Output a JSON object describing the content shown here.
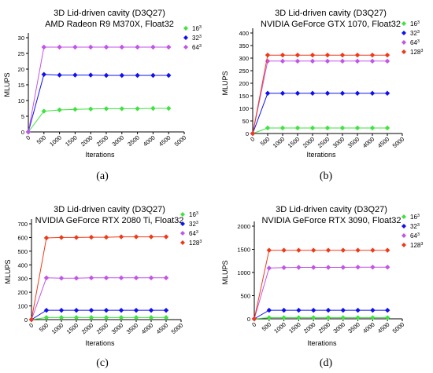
{
  "colors": {
    "s16": "#3fe23f",
    "s32": "#1010ee",
    "s64": "#c155e6",
    "s128": "#ee3a1a"
  },
  "chart_data": [
    {
      "type": "line",
      "panel": "(a)",
      "title": [
        "3D Lid-driven cavity (D3Q27)",
        "AMD Radeon R9 M370X, Float32"
      ],
      "xlabel": "Iterations",
      "ylabel": "MLUPS",
      "xlim": [
        0,
        5000
      ],
      "ylim": [
        0,
        30
      ],
      "xticks": [
        0,
        500,
        1000,
        1500,
        2000,
        2500,
        3000,
        3500,
        4000,
        4500,
        5000
      ],
      "yticks": [
        0,
        5,
        10,
        15,
        20,
        25,
        30
      ],
      "legend_position": "top-right",
      "x": [
        0,
        500,
        1000,
        1500,
        2000,
        2500,
        3000,
        3500,
        4000,
        4500
      ],
      "series": [
        {
          "name": "16",
          "exp": "3",
          "color": "#3fe23f",
          "values": [
            0,
            6.6,
            7.0,
            7.2,
            7.3,
            7.4,
            7.4,
            7.4,
            7.5,
            7.5
          ]
        },
        {
          "name": "32",
          "exp": "3",
          "color": "#1010ee",
          "values": [
            0,
            18.3,
            18.1,
            18.1,
            18.1,
            18.0,
            18.0,
            18.0,
            18.0,
            18.0
          ]
        },
        {
          "name": "64",
          "exp": "3",
          "color": "#c155e6",
          "values": [
            0,
            27.0,
            27.0,
            27.0,
            27.0,
            27.0,
            27.0,
            27.0,
            27.0,
            27.0
          ]
        }
      ]
    },
    {
      "type": "line",
      "panel": "(b)",
      "title": [
        "3D Lid-driven cavity (D3Q27)",
        "NVIDIA GeForce GTX 1070, Float32"
      ],
      "xlabel": "Iterations",
      "ylabel": "MLUPS",
      "xlim": [
        0,
        5000
      ],
      "ylim": [
        0,
        400
      ],
      "xticks": [
        0,
        500,
        1000,
        1500,
        2000,
        2500,
        3000,
        3500,
        4000,
        4500,
        5000
      ],
      "yticks": [
        0,
        50,
        100,
        150,
        200,
        250,
        300,
        350,
        400
      ],
      "legend_position": "top-right",
      "x": [
        0,
        500,
        1000,
        1500,
        2000,
        2500,
        3000,
        3500,
        4000,
        4500
      ],
      "series": [
        {
          "name": "16",
          "exp": "3",
          "color": "#3fe23f",
          "values": [
            0,
            22,
            22,
            22,
            22,
            22,
            22,
            22,
            22,
            22
          ]
        },
        {
          "name": "32",
          "exp": "3",
          "color": "#1010ee",
          "values": [
            0,
            160,
            160,
            160,
            160,
            160,
            160,
            160,
            160,
            160
          ]
        },
        {
          "name": "64",
          "exp": "3",
          "color": "#c155e6",
          "values": [
            0,
            288,
            288,
            288,
            288,
            288,
            288,
            288,
            288,
            288
          ]
        },
        {
          "name": "128",
          "exp": "3",
          "color": "#ee3a1a",
          "values": [
            0,
            312,
            312,
            312,
            312,
            312,
            312,
            312,
            312,
            312
          ]
        }
      ]
    },
    {
      "type": "line",
      "panel": "(c)",
      "title": [
        "3D Lid-driven cavity (D3Q27)",
        "NVIDIA GeForce RTX 2080 Ti, Float32"
      ],
      "xlabel": "Iterations",
      "ylabel": "MLUPS",
      "xlim": [
        0,
        5000
      ],
      "ylim": [
        0,
        700
      ],
      "xticks": [
        0,
        500,
        1000,
        1500,
        2000,
        2500,
        3000,
        3500,
        4000,
        4500,
        5000
      ],
      "yticks": [
        0,
        100,
        200,
        300,
        400,
        500,
        600,
        700
      ],
      "legend_position": "top-right",
      "x": [
        0,
        500,
        1000,
        1500,
        2000,
        2500,
        3000,
        3500,
        4000,
        4500
      ],
      "series": [
        {
          "name": "16",
          "exp": "3",
          "color": "#3fe23f",
          "values": [
            0,
            15,
            15,
            15,
            15,
            15,
            15,
            15,
            15,
            15
          ]
        },
        {
          "name": "32",
          "exp": "3",
          "color": "#1010ee",
          "values": [
            0,
            68,
            68,
            68,
            68,
            68,
            68,
            68,
            68,
            68
          ]
        },
        {
          "name": "64",
          "exp": "3",
          "color": "#c155e6",
          "values": [
            0,
            305,
            303,
            303,
            305,
            305,
            305,
            305,
            305,
            305
          ]
        },
        {
          "name": "128",
          "exp": "3",
          "color": "#ee3a1a",
          "values": [
            0,
            597,
            600,
            600,
            602,
            602,
            605,
            605,
            605,
            605
          ]
        }
      ]
    },
    {
      "type": "line",
      "panel": "(d)",
      "title": [
        "3D Lid-driven cavity (D3Q27)",
        "NVIDIA GeForce RTX 3090, Float32"
      ],
      "xlabel": "Iterations",
      "ylabel": "MLUPS",
      "xlim": [
        0,
        5000
      ],
      "ylim": [
        0,
        2000
      ],
      "xticks": [
        0,
        500,
        1000,
        1500,
        2000,
        2500,
        3000,
        3500,
        4000,
        4500,
        5000
      ],
      "yticks": [
        0,
        500,
        1000,
        1500,
        2000
      ],
      "legend_position": "top-right",
      "x": [
        0,
        500,
        1000,
        1500,
        2000,
        2500,
        3000,
        3500,
        4000,
        4500
      ],
      "series": [
        {
          "name": "16",
          "exp": "3",
          "color": "#3fe23f",
          "values": [
            0,
            25,
            25,
            25,
            25,
            25,
            25,
            25,
            25,
            25
          ]
        },
        {
          "name": "32",
          "exp": "3",
          "color": "#1010ee",
          "values": [
            0,
            185,
            185,
            185,
            185,
            185,
            185,
            185,
            185,
            185
          ]
        },
        {
          "name": "64",
          "exp": "3",
          "color": "#c155e6",
          "values": [
            0,
            1095,
            1105,
            1110,
            1110,
            1110,
            1110,
            1115,
            1115,
            1115
          ]
        },
        {
          "name": "128",
          "exp": "3",
          "color": "#ee3a1a",
          "values": [
            0,
            1480,
            1480,
            1480,
            1480,
            1480,
            1480,
            1480,
            1480,
            1480
          ]
        }
      ]
    }
  ]
}
